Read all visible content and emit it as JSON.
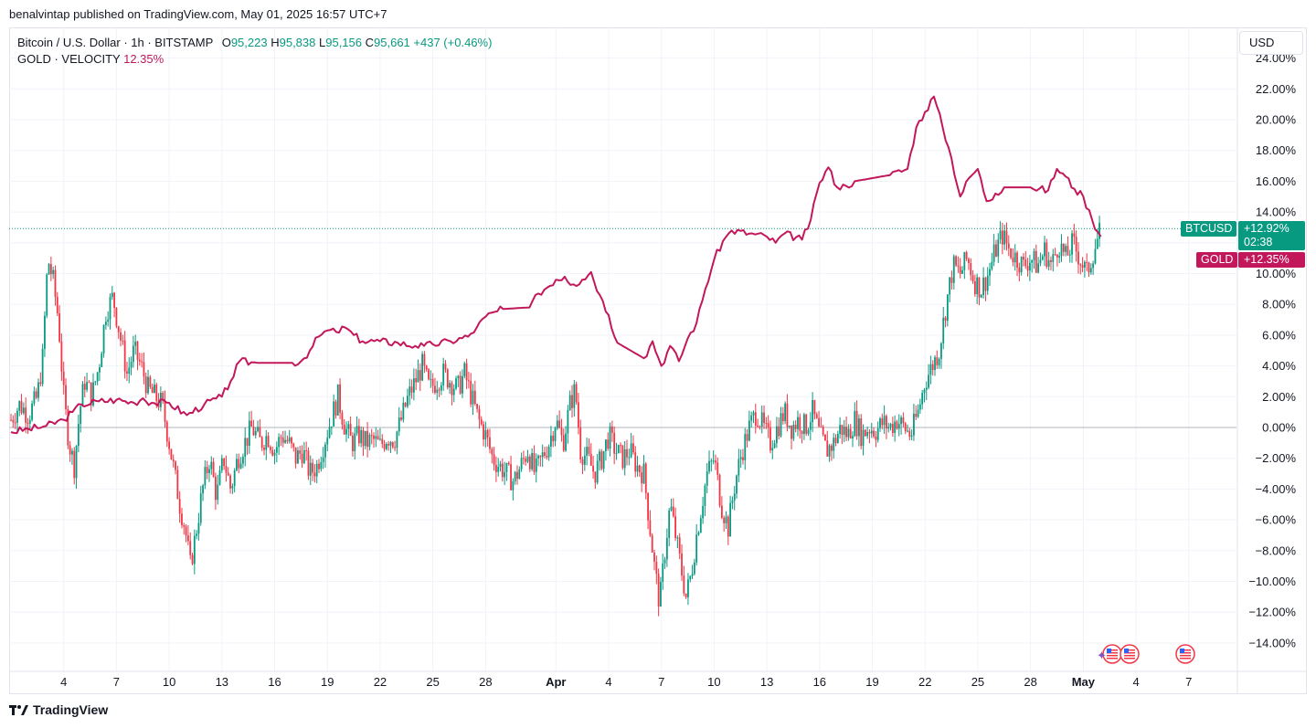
{
  "publisher_line": "benalvintap published on TradingView.com, May 01, 2025 16:57 UTC+7",
  "legend": {
    "symbol": "Bitcoin / U.S. Dollar · 1h · BITSTAMP",
    "o_label": "O",
    "o_value": "95,223",
    "h_label": "H",
    "h_value": "95,838",
    "l_label": "L",
    "l_value": "95,156",
    "c_label": "C",
    "c_value": "95,661",
    "change": "+437 (+0.46%)",
    "compare_name": "GOLD · VELOCITY",
    "compare_value": "12.35%"
  },
  "currency": "USD",
  "price_tags": {
    "btc_name": "BTCUSD",
    "btc_value": "+12.92%",
    "btc_countdown": "02:38",
    "gold_name": "GOLD",
    "gold_value": "+12.35%"
  },
  "footer": {
    "brand": "TradingView"
  },
  "colors": {
    "up": "#089981",
    "down": "#f23645",
    "gold": "#c2185b",
    "grid": "#f0f3fa",
    "axis_text": "#131722"
  },
  "chart_data": {
    "type": "line",
    "y_axis": {
      "min": -15,
      "max": 24,
      "unit": "%",
      "ticks": [
        "24.00%",
        "22.00%",
        "20.00%",
        "18.00%",
        "16.00%",
        "14.00%",
        "12.00%",
        "10.00%",
        "8.00%",
        "6.00%",
        "4.00%",
        "2.00%",
        "0.00%",
        "−2.00%",
        "−4.00%",
        "−6.00%",
        "−8.00%",
        "−10.00%",
        "−12.00%",
        "−14.00%"
      ],
      "tick_values": [
        24,
        22,
        20,
        18,
        16,
        14,
        12,
        10,
        8,
        6,
        4,
        2,
        0,
        -2,
        -4,
        -6,
        -8,
        -10,
        -12,
        -14
      ]
    },
    "x_axis": {
      "labels": [
        "4",
        "7",
        "10",
        "13",
        "16",
        "19",
        "22",
        "25",
        "28",
        "Apr",
        "4",
        "7",
        "10",
        "13",
        "16",
        "19",
        "22",
        "25",
        "28",
        "May",
        "4",
        "7"
      ],
      "bold": [
        false,
        false,
        false,
        false,
        false,
        false,
        false,
        false,
        false,
        true,
        false,
        false,
        false,
        false,
        false,
        false,
        false,
        false,
        false,
        true,
        false,
        false
      ],
      "day_index": [
        3,
        6,
        9,
        12,
        15,
        18,
        21,
        24,
        27,
        31,
        34,
        37,
        40,
        43,
        46,
        49,
        52,
        55,
        58,
        61,
        64,
        67
      ],
      "first_day": 0,
      "last_day": 68
    },
    "series": [
      {
        "name": "BTCUSD",
        "style": "candles",
        "points": [
          [
            0,
            0.5
          ],
          [
            0.5,
            1.5
          ],
          [
            1,
            0.8
          ],
          [
            1.5,
            2.0
          ],
          [
            1.8,
            4.5
          ],
          [
            2.1,
            11.0
          ],
          [
            2.4,
            9.5
          ],
          [
            2.7,
            7.0
          ],
          [
            3.0,
            2.0
          ],
          [
            3.3,
            -1.0
          ],
          [
            3.6,
            -2.5
          ],
          [
            3.9,
            1.0
          ],
          [
            4.2,
            3.0
          ],
          [
            4.6,
            2.0
          ],
          [
            5.0,
            4.0
          ],
          [
            5.4,
            7.5
          ],
          [
            5.8,
            8.5
          ],
          [
            6.2,
            6.0
          ],
          [
            6.6,
            3.5
          ],
          [
            7.0,
            5.0
          ],
          [
            7.4,
            4.0
          ],
          [
            7.8,
            2.5
          ],
          [
            8.2,
            2.0
          ],
          [
            8.6,
            1.5
          ],
          [
            9.0,
            -1.0
          ],
          [
            9.3,
            -3.0
          ],
          [
            9.6,
            -5.0
          ],
          [
            9.9,
            -6.5
          ],
          [
            10.2,
            -9.0
          ],
          [
            10.5,
            -7.0
          ],
          [
            10.9,
            -4.0
          ],
          [
            11.3,
            -2.0
          ],
          [
            11.7,
            -4.5
          ],
          [
            12.1,
            -2.0
          ],
          [
            12.5,
            -4.0
          ],
          [
            12.9,
            -2.0
          ],
          [
            13.3,
            -1.0
          ],
          [
            13.7,
            0.0
          ],
          [
            14.2,
            -1.0
          ],
          [
            14.6,
            -0.5
          ],
          [
            15.0,
            -1.5
          ],
          [
            15.4,
            -0.5
          ],
          [
            15.8,
            -1.0
          ],
          [
            16.2,
            -2.0
          ],
          [
            16.6,
            -1.5
          ],
          [
            17.0,
            -3.0
          ],
          [
            17.4,
            -2.5
          ],
          [
            17.8,
            -1.0
          ],
          [
            18.2,
            0.5
          ],
          [
            18.6,
            2.0
          ],
          [
            19.0,
            0.0
          ],
          [
            19.4,
            -1.0
          ],
          [
            19.8,
            -0.5
          ],
          [
            20.2,
            -1.0
          ],
          [
            20.6,
            -0.8
          ],
          [
            21.0,
            -1.2
          ],
          [
            21.4,
            -0.6
          ],
          [
            21.8,
            -0.8
          ],
          [
            22.2,
            0.5
          ],
          [
            22.6,
            2.0
          ],
          [
            23.0,
            3.0
          ],
          [
            23.4,
            4.0
          ],
          [
            23.8,
            2.5
          ],
          [
            24.2,
            3.0
          ],
          [
            24.6,
            3.5
          ],
          [
            25.0,
            3.0
          ],
          [
            25.4,
            2.5
          ],
          [
            25.8,
            3.5
          ],
          [
            26.2,
            2.0
          ],
          [
            26.6,
            0.5
          ],
          [
            27.0,
            -0.5
          ],
          [
            27.4,
            -2.0
          ],
          [
            27.8,
            -2.5
          ],
          [
            28.2,
            -3.0
          ],
          [
            28.6,
            -3.5
          ],
          [
            29.0,
            -2.5
          ],
          [
            29.4,
            -1.5
          ],
          [
            29.8,
            -3.0
          ],
          [
            30.2,
            -2.0
          ],
          [
            30.6,
            -1.0
          ],
          [
            31.0,
            0.5
          ],
          [
            31.4,
            -1.0
          ],
          [
            31.8,
            1.5
          ],
          [
            32.1,
            2.5
          ],
          [
            32.4,
            -1.5
          ],
          [
            32.8,
            -2.0
          ],
          [
            33.2,
            -3.0
          ],
          [
            33.6,
            -2.0
          ],
          [
            34.0,
            -0.5
          ],
          [
            34.4,
            -1.5
          ],
          [
            34.8,
            -2.0
          ],
          [
            35.2,
            -1.5
          ],
          [
            35.6,
            -2.5
          ],
          [
            36.0,
            -3.0
          ],
          [
            36.3,
            -6.0
          ],
          [
            36.6,
            -9.0
          ],
          [
            36.9,
            -11.5
          ],
          [
            37.2,
            -8.0
          ],
          [
            37.5,
            -5.0
          ],
          [
            37.8,
            -7.0
          ],
          [
            38.1,
            -9.0
          ],
          [
            38.4,
            -11.0
          ],
          [
            38.7,
            -9.5
          ],
          [
            39.0,
            -7.0
          ],
          [
            39.3,
            -5.0
          ],
          [
            39.6,
            -3.0
          ],
          [
            40.0,
            -2.0
          ],
          [
            40.4,
            -5.0
          ],
          [
            40.8,
            -6.5
          ],
          [
            41.2,
            -3.5
          ],
          [
            41.6,
            -1.5
          ],
          [
            42.0,
            0.0
          ],
          [
            42.4,
            1.0
          ],
          [
            42.8,
            0.0
          ],
          [
            43.2,
            -1.0
          ],
          [
            43.6,
            0.0
          ],
          [
            44.0,
            1.0
          ],
          [
            44.4,
            0.0
          ],
          [
            44.8,
            0.5
          ],
          [
            45.2,
            0.0
          ],
          [
            45.6,
            1.0
          ],
          [
            46.0,
            -0.5
          ],
          [
            46.4,
            -1.5
          ],
          [
            46.8,
            -1.0
          ],
          [
            47.2,
            0.0
          ],
          [
            47.6,
            -0.5
          ],
          [
            48.0,
            0.5
          ],
          [
            48.4,
            -0.5
          ],
          [
            48.8,
            0.0
          ],
          [
            49.2,
            -0.2
          ],
          [
            49.6,
            0.3
          ],
          [
            50.0,
            0.0
          ],
          [
            50.4,
            0.5
          ],
          [
            50.8,
            0.0
          ],
          [
            51.2,
            -0.5
          ],
          [
            51.6,
            1.0
          ],
          [
            52.0,
            3.0
          ],
          [
            52.4,
            4.0
          ],
          [
            52.8,
            5.0
          ],
          [
            53.2,
            8.0
          ],
          [
            53.6,
            10.5
          ],
          [
            54.0,
            10.0
          ],
          [
            54.4,
            11.0
          ],
          [
            54.8,
            9.5
          ],
          [
            55.2,
            9.0
          ],
          [
            55.6,
            10.0
          ],
          [
            56.0,
            11.5
          ],
          [
            56.4,
            12.5
          ],
          [
            56.8,
            11.5
          ],
          [
            57.2,
            11.0
          ],
          [
            57.6,
            10.5
          ],
          [
            58.0,
            11.0
          ],
          [
            58.4,
            10.5
          ],
          [
            58.8,
            11.5
          ],
          [
            59.2,
            10.5
          ],
          [
            59.6,
            12.0
          ],
          [
            60.0,
            11.0
          ],
          [
            60.4,
            12.0
          ],
          [
            60.8,
            11.0
          ],
          [
            61.2,
            10.0
          ],
          [
            61.6,
            11.5
          ],
          [
            62.0,
            12.9
          ]
        ]
      },
      {
        "name": "GOLD",
        "style": "line",
        "points": [
          [
            0,
            -0.3
          ],
          [
            1,
            -0.1
          ],
          [
            2,
            0.1
          ],
          [
            3,
            0.5
          ],
          [
            3.5,
            1.0
          ],
          [
            4,
            1.5
          ],
          [
            5,
            1.7
          ],
          [
            6,
            1.8
          ],
          [
            7,
            1.6
          ],
          [
            7.5,
            1.9
          ],
          [
            8,
            1.6
          ],
          [
            9,
            1.6
          ],
          [
            10,
            0.8
          ],
          [
            11,
            1.5
          ],
          [
            12,
            2.0
          ],
          [
            12.5,
            3.0
          ],
          [
            13,
            4.3
          ],
          [
            14,
            4.2
          ],
          [
            16,
            4.2
          ],
          [
            16.5,
            4.3
          ],
          [
            17,
            5.0
          ],
          [
            17.5,
            5.9
          ],
          [
            18,
            6.3
          ],
          [
            18.5,
            6.2
          ],
          [
            19,
            6.5
          ],
          [
            19.5,
            6.0
          ],
          [
            20,
            5.6
          ],
          [
            21,
            5.6
          ],
          [
            22,
            5.5
          ],
          [
            23,
            5.3
          ],
          [
            23.5,
            5.3
          ],
          [
            24,
            5.4
          ],
          [
            25,
            5.6
          ],
          [
            26,
            5.9
          ],
          [
            26.5,
            6.5
          ],
          [
            27,
            7.2
          ],
          [
            28,
            7.7
          ],
          [
            29.5,
            7.8
          ],
          [
            30,
            8.7
          ],
          [
            31,
            9.6
          ],
          [
            31.5,
            9.8
          ],
          [
            32,
            9.3
          ],
          [
            32.5,
            9.6
          ],
          [
            33,
            10.1
          ],
          [
            33.5,
            8.6
          ],
          [
            34,
            7.3
          ],
          [
            34.5,
            5.5
          ],
          [
            36,
            4.5
          ],
          [
            36.5,
            5.6
          ],
          [
            37,
            4.0
          ],
          [
            37.5,
            5.3
          ],
          [
            38,
            4.3
          ],
          [
            38.5,
            5.8
          ],
          [
            39,
            6.8
          ],
          [
            39.5,
            9.0
          ],
          [
            40,
            10.9
          ],
          [
            40.5,
            12.1
          ],
          [
            41,
            12.8
          ],
          [
            42,
            12.6
          ],
          [
            43,
            12.4
          ],
          [
            43.5,
            12.0
          ],
          [
            44,
            12.6
          ],
          [
            45,
            12.2
          ],
          [
            45.5,
            13.5
          ],
          [
            46,
            15.9
          ],
          [
            46.5,
            16.9
          ],
          [
            47,
            15.6
          ],
          [
            47.5,
            15.7
          ],
          [
            48,
            16.0
          ],
          [
            50,
            16.4
          ],
          [
            51,
            16.8
          ],
          [
            51.5,
            19.5
          ],
          [
            52,
            20.5
          ],
          [
            52.5,
            21.5
          ],
          [
            53,
            19.5
          ],
          [
            53.5,
            17.5
          ],
          [
            54,
            15.0
          ],
          [
            54.5,
            16.2
          ],
          [
            55,
            16.8
          ],
          [
            55.5,
            14.7
          ],
          [
            56,
            15.2
          ],
          [
            56.5,
            15.6
          ],
          [
            58,
            15.6
          ],
          [
            59,
            15.4
          ],
          [
            59.5,
            16.8
          ],
          [
            60,
            16.3
          ],
          [
            60.5,
            15.5
          ],
          [
            61,
            15.0
          ],
          [
            61.5,
            13.5
          ],
          [
            62,
            12.4
          ]
        ]
      }
    ],
    "zero_line": 0,
    "last_price_line": 12.92,
    "grid": true
  }
}
